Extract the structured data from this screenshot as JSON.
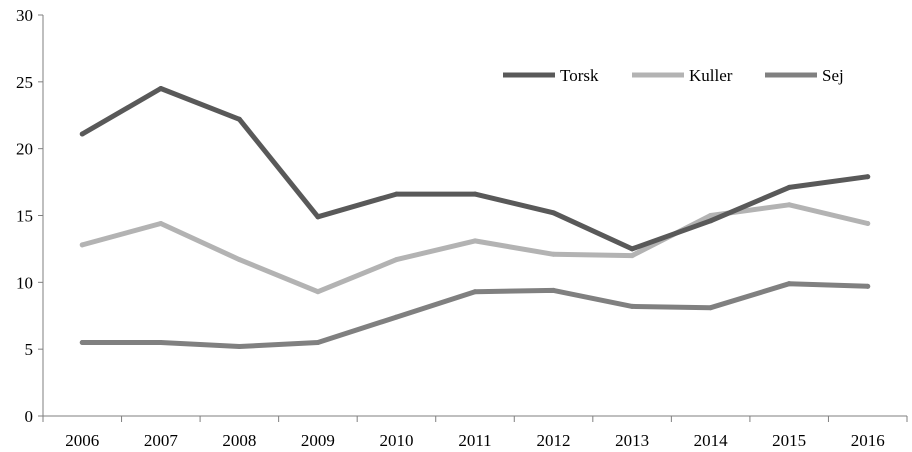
{
  "chart_data": {
    "type": "line",
    "x": [
      "2006",
      "2007",
      "2008",
      "2009",
      "2010",
      "2011",
      "2012",
      "2013",
      "2014",
      "2015",
      "2016"
    ],
    "yticks": [
      "0",
      "5",
      "10",
      "15",
      "20",
      "25",
      "30"
    ],
    "ylim": [
      0,
      30
    ],
    "grid": false,
    "legend_position": "top-right",
    "series": [
      {
        "name": "Torsk",
        "color": "#595959",
        "values": [
          21.1,
          24.5,
          22.2,
          14.9,
          16.6,
          16.6,
          15.2,
          12.5,
          14.6,
          17.1,
          17.9
        ]
      },
      {
        "name": "Kuller",
        "color": "#b3b3b3",
        "values": [
          12.8,
          14.4,
          11.7,
          9.3,
          11.7,
          13.1,
          12.1,
          12.0,
          15.0,
          15.8,
          14.4
        ]
      },
      {
        "name": "Sej",
        "color": "#808080",
        "values": [
          5.5,
          5.5,
          5.2,
          5.5,
          7.4,
          9.3,
          9.4,
          8.2,
          8.1,
          9.9,
          9.7
        ]
      }
    ]
  }
}
